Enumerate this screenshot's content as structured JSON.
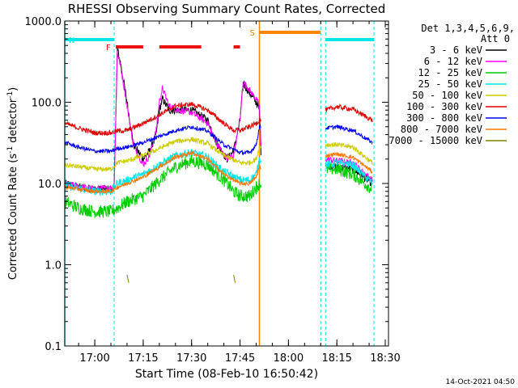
{
  "chart_data": {
    "type": "line",
    "title": "RHESSI Observing Summary Count Rates, Corrected",
    "xlabel": "Start Time (08-Feb-10 16:50:42)",
    "ylabel_main": "Corrected Count Rate (s",
    "ylabel_sup1": "-1",
    "ylabel_mid": " detector",
    "ylabel_sup2": "-1",
    "ylabel_end": ")",
    "ylim": [
      0.1,
      1000
    ],
    "y_scale": "log",
    "xlim": [
      "16:50:42",
      "18:31:00"
    ],
    "x_ticks": [
      "17:00",
      "17:15",
      "17:30",
      "17:45",
      "18:00",
      "18:15",
      "18:30"
    ],
    "y_ticks": [
      "0.1",
      "1.0",
      "10.0",
      "100.0",
      "1000.0"
    ],
    "legend_title": [
      "Det 1,3,4,5,6,9,",
      "Att 0"
    ],
    "legend_position": "right",
    "footer_date": "14-Oct-2021 04:50",
    "flags": [
      {
        "label": "N",
        "color": "#00e5e5",
        "segments": [
          [
            "16:50:42",
            "17:06:00"
          ],
          [
            "18:11:30",
            "18:26:30"
          ]
        ]
      },
      {
        "label": "F",
        "color": "#ee1111",
        "segments": [
          [
            "17:06:30",
            "17:15:00"
          ],
          [
            "17:20:00",
            "17:33:00"
          ],
          [
            "17:43:00",
            "17:45:00"
          ]
        ]
      },
      {
        "label": "S",
        "color": "#ff8800",
        "segments": [
          [
            "17:51:00",
            "18:10:00"
          ]
        ]
      }
    ],
    "markers": [
      {
        "time": "16:50:42",
        "color": "#00e5e5",
        "style": "solid"
      },
      {
        "time": "17:06:00",
        "color": "#00e5e5",
        "style": "dashed"
      },
      {
        "time": "17:51:00",
        "color": "#ff8800",
        "style": "solid"
      },
      {
        "time": "18:10:00",
        "color": "#00e5e5",
        "style": "dashed"
      },
      {
        "time": "18:11:30",
        "color": "#00e5e5",
        "style": "dashed"
      },
      {
        "time": "18:26:30",
        "color": "#00e5e5",
        "style": "dashed"
      }
    ],
    "series": [
      {
        "name": "3 - 6 keV",
        "color": "#000000",
        "noise": 0.05,
        "points": [
          [
            "16:50:42",
            10
          ],
          [
            "16:55",
            9
          ],
          [
            "17:00",
            8.5
          ],
          [
            "17:05",
            8.5
          ],
          [
            "17:06",
            9
          ],
          [
            "17:07",
            450
          ],
          [
            "17:08",
            300
          ],
          [
            "17:10",
            100
          ],
          [
            "17:12",
            30
          ],
          [
            "17:15",
            20
          ],
          [
            "17:17",
            25
          ],
          [
            "17:19",
            40
          ],
          [
            "17:20",
            80
          ],
          [
            "17:21",
            110
          ],
          [
            "17:23",
            80
          ],
          [
            "17:26",
            80
          ],
          [
            "17:30",
            80
          ],
          [
            "17:35",
            60
          ],
          [
            "17:38",
            30
          ],
          [
            "17:41",
            20
          ],
          [
            "17:43",
            25
          ],
          [
            "17:45",
            60
          ],
          [
            "17:46",
            170
          ],
          [
            "17:48",
            130
          ],
          [
            "17:50",
            100
          ],
          [
            "17:51",
            80
          ],
          [
            "17:51:30",
            25
          ],
          [
            "18:10",
            null
          ],
          [
            "18:11:30",
            17
          ],
          [
            "18:15",
            16
          ],
          [
            "18:20",
            15
          ],
          [
            "18:26",
            10
          ]
        ]
      },
      {
        "name": "6 - 12 keV",
        "color": "#ff00ff",
        "noise": 0.04,
        "points": [
          [
            "16:50:42",
            10
          ],
          [
            "17:00",
            8.5
          ],
          [
            "17:06",
            9
          ],
          [
            "17:07",
            420
          ],
          [
            "17:08",
            280
          ],
          [
            "17:10",
            90
          ],
          [
            "17:12",
            30
          ],
          [
            "17:15",
            17
          ],
          [
            "17:17",
            22
          ],
          [
            "17:19",
            45
          ],
          [
            "17:20",
            100
          ],
          [
            "17:21",
            150
          ],
          [
            "17:23",
            90
          ],
          [
            "17:26",
            80
          ],
          [
            "17:30",
            75
          ],
          [
            "17:35",
            55
          ],
          [
            "17:38",
            30
          ],
          [
            "17:41",
            20
          ],
          [
            "17:43",
            22
          ],
          [
            "17:45",
            60
          ],
          [
            "17:46",
            180
          ],
          [
            "17:48",
            140
          ],
          [
            "17:50",
            110
          ],
          [
            "17:51",
            90
          ],
          [
            "17:51:30",
            28
          ],
          [
            "18:10",
            null
          ],
          [
            "18:11:30",
            20
          ],
          [
            "18:15",
            19
          ],
          [
            "18:20",
            18
          ],
          [
            "18:26",
            11
          ]
        ]
      },
      {
        "name": "12 - 25 keV",
        "color": "#00cc00",
        "noise": 0.08,
        "points": [
          [
            "16:50:42",
            6
          ],
          [
            "16:55",
            5
          ],
          [
            "17:00",
            4.5
          ],
          [
            "17:05",
            4.5
          ],
          [
            "17:07",
            5
          ],
          [
            "17:10",
            6
          ],
          [
            "17:15",
            7
          ],
          [
            "17:20",
            11
          ],
          [
            "17:25",
            16
          ],
          [
            "17:30",
            19
          ],
          [
            "17:35",
            17
          ],
          [
            "17:40",
            11
          ],
          [
            "17:43",
            8
          ],
          [
            "17:45",
            7
          ],
          [
            "17:48",
            7
          ],
          [
            "17:50",
            9
          ],
          [
            "17:51",
            10
          ],
          [
            "17:51:30",
            10
          ],
          [
            "18:10",
            null
          ],
          [
            "18:11:30",
            15
          ],
          [
            "18:15",
            15
          ],
          [
            "18:20",
            13
          ],
          [
            "18:26",
            8.5
          ]
        ]
      },
      {
        "name": "25 - 50 keV",
        "color": "#00e5e5",
        "noise": 0.05,
        "points": [
          [
            "16:50:42",
            9.5
          ],
          [
            "17:00",
            8
          ],
          [
            "17:05",
            8
          ],
          [
            "17:07",
            10
          ],
          [
            "17:10",
            11
          ],
          [
            "17:15",
            13
          ],
          [
            "17:20",
            17
          ],
          [
            "17:25",
            22
          ],
          [
            "17:30",
            24
          ],
          [
            "17:35",
            21
          ],
          [
            "17:40",
            14
          ],
          [
            "17:45",
            11
          ],
          [
            "17:48",
            11
          ],
          [
            "17:50",
            13
          ],
          [
            "17:51",
            20
          ],
          [
            "17:51:30",
            20
          ],
          [
            "18:10",
            null
          ],
          [
            "18:11:30",
            17
          ],
          [
            "18:15",
            18
          ],
          [
            "18:20",
            17
          ],
          [
            "18:26",
            10
          ]
        ]
      },
      {
        "name": "50 - 100 keV",
        "color": "#cccc00",
        "noise": 0.03,
        "points": [
          [
            "16:50:42",
            17
          ],
          [
            "17:00",
            15
          ],
          [
            "17:05",
            15
          ],
          [
            "17:07",
            18
          ],
          [
            "17:10",
            19
          ],
          [
            "17:15",
            22
          ],
          [
            "17:20",
            27
          ],
          [
            "17:25",
            33
          ],
          [
            "17:30",
            35
          ],
          [
            "17:35",
            31
          ],
          [
            "17:40",
            22
          ],
          [
            "17:45",
            18
          ],
          [
            "17:48",
            18
          ],
          [
            "17:50",
            20
          ],
          [
            "17:51",
            28
          ],
          [
            "17:51:30",
            28
          ],
          [
            "18:10",
            null
          ],
          [
            "18:11:30",
            30
          ],
          [
            "18:15",
            30
          ],
          [
            "18:20",
            28
          ],
          [
            "18:26",
            18
          ]
        ]
      },
      {
        "name": "100 - 300 keV",
        "color": "#dd0000",
        "noise": 0.03,
        "points": [
          [
            "16:50:42",
            55
          ],
          [
            "16:55",
            48
          ],
          [
            "17:00",
            42
          ],
          [
            "17:05",
            42
          ],
          [
            "17:07",
            44
          ],
          [
            "17:10",
            45
          ],
          [
            "17:15",
            55
          ],
          [
            "17:20",
            70
          ],
          [
            "17:25",
            90
          ],
          [
            "17:30",
            95
          ],
          [
            "17:35",
            80
          ],
          [
            "17:40",
            55
          ],
          [
            "17:43",
            45
          ],
          [
            "17:45",
            45
          ],
          [
            "17:48",
            50
          ],
          [
            "17:50",
            55
          ],
          [
            "17:51",
            60
          ],
          [
            "17:51:30",
            60
          ],
          [
            "18:10",
            null
          ],
          [
            "18:11:30",
            80
          ],
          [
            "18:15",
            88
          ],
          [
            "18:20",
            82
          ],
          [
            "18:26",
            60
          ]
        ]
      },
      {
        "name": "300 - 800 keV",
        "color": "#0000ee",
        "noise": 0.025,
        "points": [
          [
            "16:50:42",
            32
          ],
          [
            "16:55",
            28
          ],
          [
            "17:00",
            25
          ],
          [
            "17:05",
            25
          ],
          [
            "17:07",
            27
          ],
          [
            "17:10",
            28
          ],
          [
            "17:15",
            32
          ],
          [
            "17:20",
            38
          ],
          [
            "17:25",
            45
          ],
          [
            "17:30",
            50
          ],
          [
            "17:35",
            44
          ],
          [
            "17:40",
            30
          ],
          [
            "17:45",
            24
          ],
          [
            "17:48",
            24
          ],
          [
            "17:50",
            30
          ],
          [
            "17:51",
            50
          ],
          [
            "17:51:30",
            50
          ],
          [
            "18:10",
            null
          ],
          [
            "18:11:30",
            48
          ],
          [
            "18:15",
            50
          ],
          [
            "18:20",
            45
          ],
          [
            "18:26",
            32
          ]
        ]
      },
      {
        "name": "800 - 7000 keV",
        "color": "#ff7700",
        "noise": 0.025,
        "points": [
          [
            "16:50:42",
            9
          ],
          [
            "17:00",
            8
          ],
          [
            "17:05",
            8
          ],
          [
            "17:07",
            9
          ],
          [
            "17:10",
            10
          ],
          [
            "17:15",
            12
          ],
          [
            "17:20",
            16
          ],
          [
            "17:25",
            21
          ],
          [
            "17:30",
            24
          ],
          [
            "17:35",
            20
          ],
          [
            "17:40",
            13
          ],
          [
            "17:45",
            10
          ],
          [
            "17:48",
            10
          ],
          [
            "17:50",
            12
          ],
          [
            "17:51",
            16
          ],
          [
            "17:51:30",
            16
          ],
          [
            "18:10",
            null
          ],
          [
            "18:11:30",
            22
          ],
          [
            "18:15",
            23
          ],
          [
            "18:20",
            21
          ],
          [
            "18:26",
            14
          ]
        ]
      },
      {
        "name": "7000 - 15000 keV",
        "color": "#808000",
        "noise": 0,
        "points": [
          [
            "17:10",
            0.75
          ],
          [
            "17:10:30",
            0.6
          ],
          [
            "17:10:31",
            null
          ],
          [
            "17:43",
            0.75
          ],
          [
            "17:43:30",
            0.6
          ]
        ]
      }
    ]
  }
}
